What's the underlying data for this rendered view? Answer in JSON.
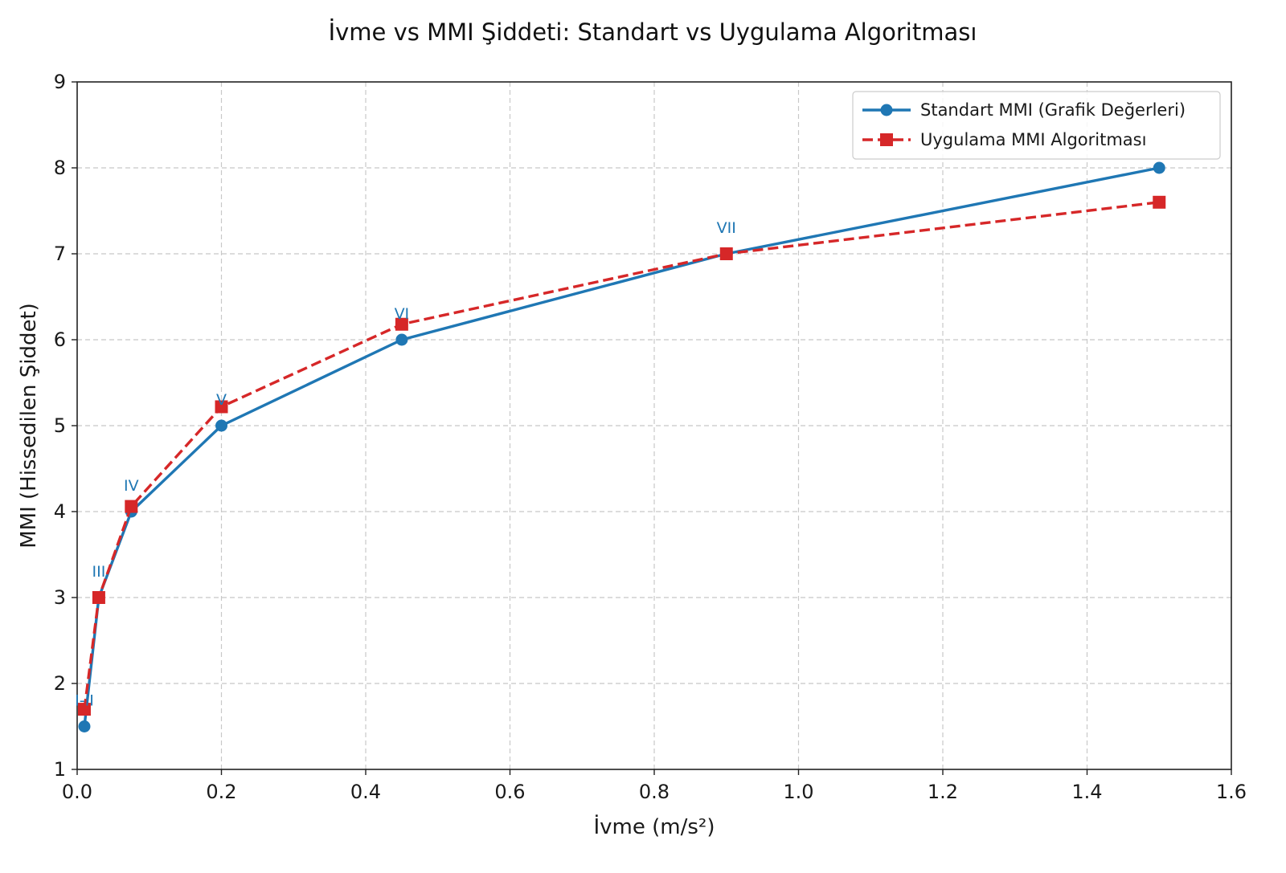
{
  "chart_data": {
    "type": "line",
    "title": "İvme vs MMI Şiddeti: Standart vs Uygulama Algoritması",
    "xlabel": "İvme (m/s²)",
    "ylabel": "MMI (Hissedilen Şiddet)",
    "xlim": [
      0.0,
      1.6
    ],
    "ylim": [
      1,
      9
    ],
    "xticks": [
      0.0,
      0.2,
      0.4,
      0.6,
      0.8,
      1.0,
      1.2,
      1.4,
      1.6
    ],
    "xtick_labels": [
      "0.0",
      "0.2",
      "0.4",
      "0.6",
      "0.8",
      "1.0",
      "1.2",
      "1.4",
      "1.6"
    ],
    "yticks": [
      1,
      2,
      3,
      4,
      5,
      6,
      7,
      8,
      9
    ],
    "ytick_labels": [
      "1",
      "2",
      "3",
      "4",
      "5",
      "6",
      "7",
      "8",
      "9"
    ],
    "grid": true,
    "legend_position": "top-right",
    "series": [
      {
        "name": "Standart MMI (Grafik Değerleri)",
        "color": "#1f77b4",
        "line_style": "solid",
        "marker": "circle",
        "x": [
          0.01,
          0.03,
          0.075,
          0.2,
          0.45,
          0.9,
          1.5
        ],
        "y": [
          1.5,
          3.0,
          4.0,
          5.0,
          6.0,
          7.0,
          8.0
        ]
      },
      {
        "name": "Uygulama MMI Algoritması",
        "color": "#d62728",
        "line_style": "dashed",
        "marker": "square",
        "x": [
          0.01,
          0.03,
          0.075,
          0.2,
          0.45,
          0.9,
          1.5
        ],
        "y": [
          1.7,
          3.0,
          4.06,
          5.22,
          6.18,
          7.0,
          7.6
        ]
      }
    ],
    "annotations": [
      {
        "text": "I-II",
        "x": 0.01,
        "y": 1.5
      },
      {
        "text": "III",
        "x": 0.03,
        "y": 3.0
      },
      {
        "text": "IV",
        "x": 0.075,
        "y": 4.0
      },
      {
        "text": "V",
        "x": 0.2,
        "y": 5.0
      },
      {
        "text": "VI",
        "x": 0.45,
        "y": 6.0
      },
      {
        "text": "VII",
        "x": 0.9,
        "y": 7.0
      }
    ],
    "annotation_color": "#1f77b4"
  }
}
